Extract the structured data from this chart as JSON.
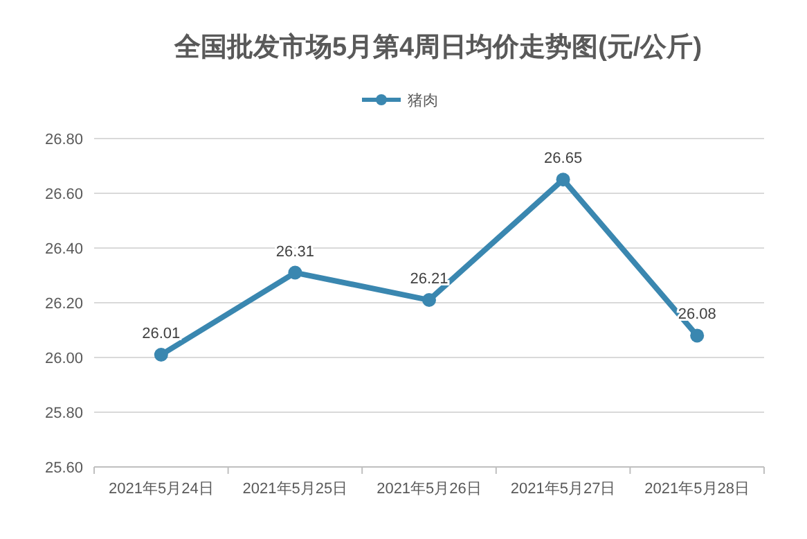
{
  "chart_data": {
    "type": "line",
    "title": "全国批发市场5月第4周日均价走势图(元/公斤)",
    "categories": [
      "2021年5月24日",
      "2021年5月25日",
      "2021年5月26日",
      "2021年5月27日",
      "2021年5月28日"
    ],
    "series": [
      {
        "name": "猪肉",
        "color": "#3a87b0",
        "values": [
          26.01,
          26.31,
          26.21,
          26.65,
          26.08
        ]
      }
    ],
    "ylim": [
      25.6,
      26.8
    ],
    "yticks": [
      {
        "value": 25.6,
        "label": "25.60"
      },
      {
        "value": 25.8,
        "label": "25.80"
      },
      {
        "value": 26.0,
        "label": "26.00"
      },
      {
        "value": 26.2,
        "label": "26.20"
      },
      {
        "value": 26.4,
        "label": "26.40"
      },
      {
        "value": 26.6,
        "label": "26.60"
      },
      {
        "value": 26.8,
        "label": "26.80"
      }
    ],
    "grid": "y",
    "legend": "top",
    "marker": "circle",
    "line_style": "solid",
    "data_labels": true
  }
}
